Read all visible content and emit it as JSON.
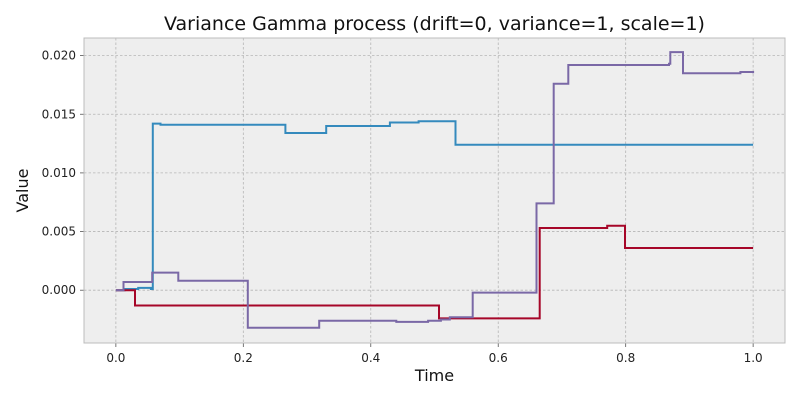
{
  "chart_data": {
    "type": "line",
    "title": "Variance Gamma process (drift=0, variance=1, scale=1)",
    "xlabel": "Time",
    "ylabel": "Value",
    "xlim": [
      -0.05,
      1.05
    ],
    "ylim": [
      -0.0045,
      0.0215
    ],
    "x_ticks": [
      0.0,
      0.2,
      0.4,
      0.6,
      0.8,
      1.0
    ],
    "x_tick_labels": [
      "0.0",
      "0.2",
      "0.4",
      "0.6",
      "0.8",
      "1.0"
    ],
    "y_ticks": [
      0.0,
      0.005,
      0.01,
      0.015,
      0.02
    ],
    "y_tick_labels": [
      "0.000",
      "0.005",
      "0.010",
      "0.015",
      "0.020"
    ],
    "grid": true,
    "plot_background": "#eeeeee",
    "grid_color": "#b5b5b5",
    "step": "post",
    "series": [
      {
        "color": "#348abd",
        "x": [
          0.0,
          0.014,
          0.035,
          0.055,
          0.058,
          0.058,
          0.07,
          0.15,
          0.266,
          0.33,
          0.43,
          0.475,
          0.533,
          0.737,
          0.871,
          1.0
        ],
        "y": [
          0.0,
          0.0001,
          0.0002,
          0.0001,
          0.0008,
          0.0142,
          0.0141,
          0.0141,
          0.0134,
          0.014,
          0.0143,
          0.0144,
          0.0124,
          0.0124,
          0.0124,
          0.0124
        ]
      },
      {
        "color": "#a60628",
        "x": [
          0.0,
          0.03,
          0.15,
          0.31,
          0.507,
          0.548,
          0.665,
          0.771,
          0.799,
          1.0
        ],
        "y": [
          0.0,
          -0.0013,
          -0.0013,
          -0.0013,
          -0.0024,
          -0.0024,
          0.0053,
          0.0055,
          0.0036,
          0.0036
        ],
        "label_note": ""
      },
      {
        "color": "#7a68a6",
        "x": [
          0.0,
          0.012,
          0.055,
          0.057,
          0.098,
          0.207,
          0.319,
          0.4,
          0.44,
          0.49,
          0.51,
          0.524,
          0.56,
          0.62,
          0.66,
          0.687,
          0.71,
          0.767,
          0.868,
          0.87,
          0.89,
          0.98,
          1.0
        ],
        "y": [
          0.0,
          0.0007,
          0.0007,
          0.0015,
          0.0008,
          -0.0032,
          -0.0026,
          -0.0026,
          -0.0027,
          -0.0026,
          -0.0025,
          -0.0023,
          -0.0002,
          -0.0002,
          0.0074,
          0.0176,
          0.0192,
          0.0192,
          0.0193,
          0.0203,
          0.0185,
          0.0186,
          0.0185
        ]
      }
    ]
  }
}
